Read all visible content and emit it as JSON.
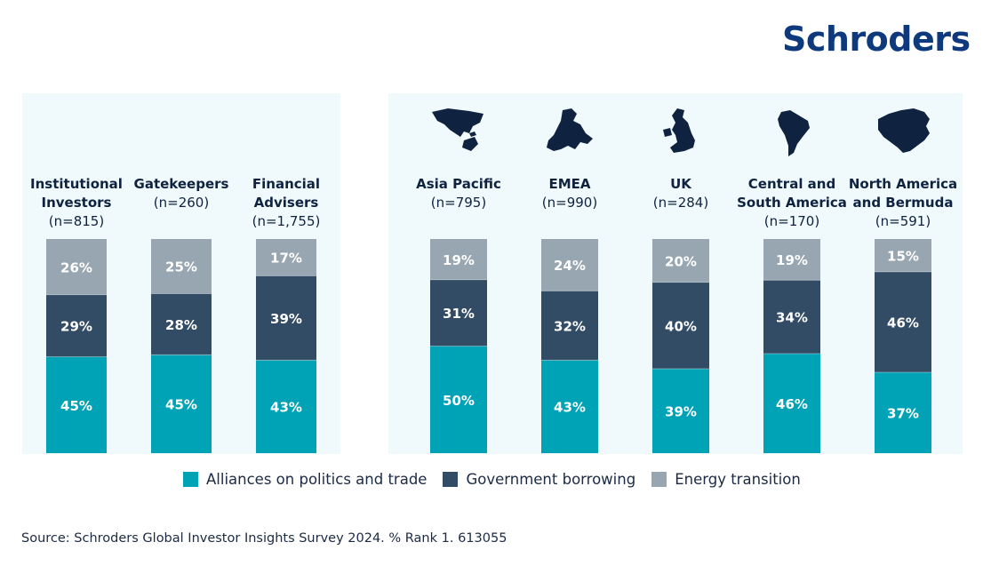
{
  "logo": "Schroders",
  "colors": {
    "alliances": "#00a3b5",
    "borrowing": "#334c66",
    "energy": "#98a6b2",
    "panel_bg": "#f0f9fc",
    "text": "#0f2340",
    "brand": "#0e3a7d"
  },
  "chart_data": {
    "type": "bar",
    "stacked": true,
    "percent": true,
    "groups": [
      {
        "name": "investor-types",
        "categories": [
          "Institutional Investors",
          "Gatekeepers",
          "Financial Advisers"
        ]
      },
      {
        "name": "regions",
        "categories": [
          "Asia Pacific",
          "EMEA",
          "UK",
          "Central and South America",
          "North America and Bermuda"
        ]
      }
    ],
    "categories": [
      {
        "title_lines": [
          "Institutional",
          "Investors"
        ],
        "n": "(n=815)",
        "icon": null
      },
      {
        "title_lines": [
          "Gatekeepers"
        ],
        "n": "(n=260)",
        "icon": null
      },
      {
        "title_lines": [
          "Financial",
          "Advisers"
        ],
        "n": "(n=1,755)",
        "icon": null
      },
      {
        "title_lines": [
          "Asia Pacific"
        ],
        "n": "(n=795)",
        "icon": "asia-pacific-map-icon"
      },
      {
        "title_lines": [
          "EMEA"
        ],
        "n": "(n=990)",
        "icon": "europe-map-icon"
      },
      {
        "title_lines": [
          "UK"
        ],
        "n": "(n=284)",
        "icon": "uk-map-icon"
      },
      {
        "title_lines": [
          "Central and",
          "South America"
        ],
        "n": "(n=170)",
        "icon": "south-america-map-icon"
      },
      {
        "title_lines": [
          "North America",
          "and Bermuda"
        ],
        "n": "(n=591)",
        "icon": "north-america-map-icon"
      }
    ],
    "series": [
      {
        "name": "Alliances on politics and trade",
        "values": [
          45,
          45,
          43,
          50,
          43,
          39,
          46,
          37
        ]
      },
      {
        "name": "Government borrowing",
        "values": [
          29,
          28,
          39,
          31,
          32,
          40,
          34,
          46
        ]
      },
      {
        "name": "Energy transition",
        "values": [
          26,
          25,
          17,
          19,
          24,
          20,
          19,
          15
        ]
      }
    ],
    "value_suffix": "%",
    "ylim": [
      0,
      100
    ],
    "title": "",
    "xlabel": "",
    "ylabel": "",
    "grid": false,
    "legend_position": "bottom"
  },
  "legend": [
    {
      "label": "Alliances on politics and trade"
    },
    {
      "label": "Government borrowing"
    },
    {
      "label": "Energy transition"
    }
  ],
  "source": "Source: Schroders Global Investor Insights Survey 2024. % Rank 1. 613055"
}
